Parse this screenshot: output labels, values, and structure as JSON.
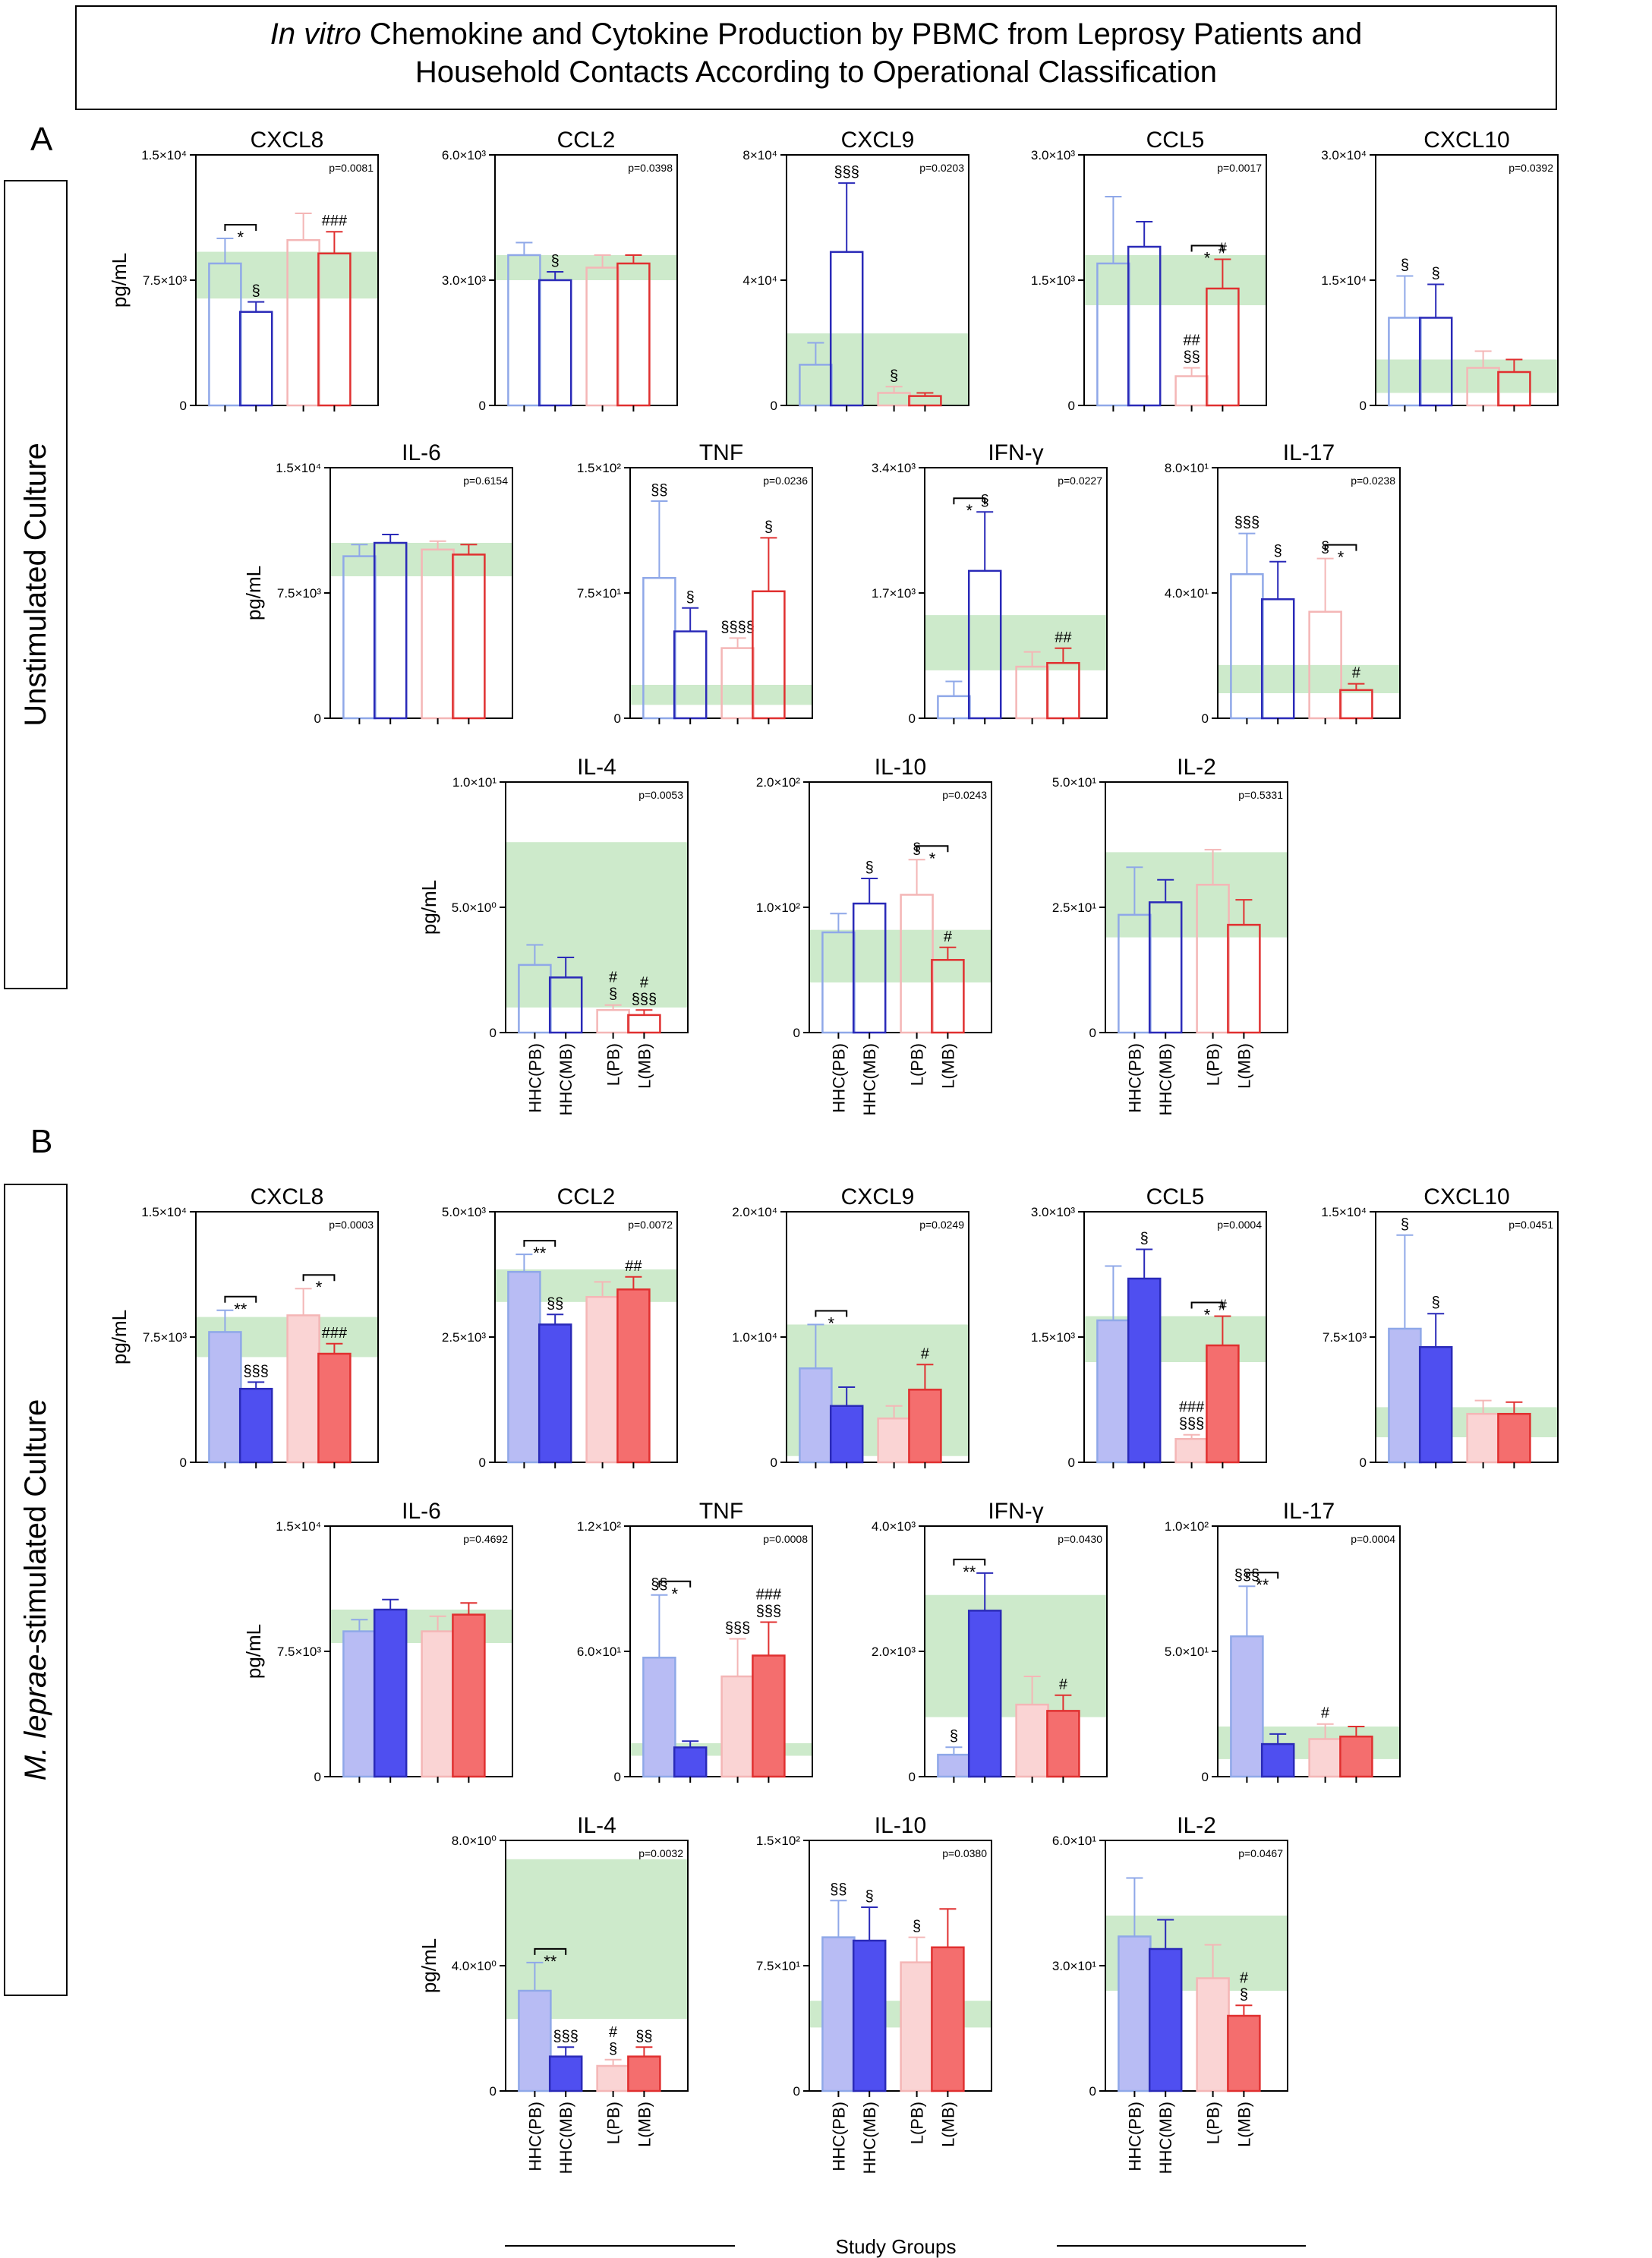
{
  "figure": {
    "title_line1_italic": "In vitro",
    "title_line1_rest": " Chemokine and Cytokine Production by PBMC from Leprosy Patients and",
    "title_line2": "Household Contacts According to Operational Classification",
    "panel_labels": [
      "A",
      "B"
    ],
    "side_labels": {
      "A": {
        "plain_before": "",
        "italic": "",
        "plain_after": "Unstimulated Culture"
      },
      "B": {
        "plain_before": "",
        "italic": "M. leprae",
        "plain_after": "-stimulated Culture"
      }
    },
    "ylabel": "pg/mL",
    "x_axis_title": "Study Groups",
    "groups": [
      "HHC(PB)",
      "HHC(MB)",
      "L(PB)",
      "L(MB)"
    ],
    "colors": {
      "hhc_pb": "#8fa8e8",
      "hhc_mb": "#2a2ab8",
      "l_pb": "#f4b6b6",
      "l_mb": "#e03030",
      "hhc_pb_fill": "#b8bcf4",
      "hhc_mb_fill": "#4f4ff0",
      "l_pb_fill": "#fad4d4",
      "l_mb_fill": "#f46e6e",
      "reference_band": "#cdeacb"
    }
  },
  "chart_data": [
    {
      "type": "bar",
      "section": "A",
      "title": "CXCL8",
      "ylim": [
        0,
        15000
      ],
      "ticks": [
        "0",
        "7.5×10³",
        "1.5×10⁴"
      ],
      "pvalue": "p=0.0081",
      "ylabel": "pg/mL",
      "band": [
        6400,
        9200
      ],
      "categories": [
        "HHC(PB)",
        "HHC(MB)",
        "L(PB)",
        "L(MB)"
      ],
      "values": [
        8500,
        5600,
        9900,
        9100
      ],
      "errors": [
        1500,
        600,
        1600,
        1300
      ],
      "marks": [
        "",
        "§",
        "",
        "###"
      ],
      "brackets": [
        {
          "from": 0,
          "to": 1,
          "label": "*"
        }
      ]
    },
    {
      "type": "bar",
      "section": "A",
      "title": "CCL2",
      "ylim": [
        0,
        6000
      ],
      "ticks": [
        "0",
        "3.0×10³",
        "6.0×10³"
      ],
      "pvalue": "p=0.0398",
      "ylabel": "",
      "band": [
        3000,
        3600
      ],
      "categories": [
        "HHC(PB)",
        "HHC(MB)",
        "L(PB)",
        "L(MB)"
      ],
      "values": [
        3600,
        3000,
        3300,
        3400
      ],
      "errors": [
        300,
        200,
        300,
        200
      ],
      "marks": [
        "",
        "§",
        "",
        ""
      ],
      "brackets": []
    },
    {
      "type": "bar",
      "section": "A",
      "title": "CXCL9",
      "ylim": [
        0,
        80000
      ],
      "ticks": [
        "0",
        "4×10⁴",
        "8×10⁴"
      ],
      "pvalue": "p=0.0203",
      "ylabel": "",
      "band": [
        0,
        23000
      ],
      "categories": [
        "HHC(PB)",
        "HHC(MB)",
        "L(PB)",
        "L(MB)"
      ],
      "values": [
        13000,
        49000,
        4000,
        3000
      ],
      "errors": [
        7000,
        22000,
        2000,
        1000
      ],
      "marks": [
        "",
        "§§§",
        "§",
        ""
      ],
      "brackets": []
    },
    {
      "type": "bar",
      "section": "A",
      "title": "CCL5",
      "ylim": [
        0,
        3000
      ],
      "ticks": [
        "0",
        "1.5×10³",
        "3.0×10³"
      ],
      "pvalue": "p=0.0017",
      "ylabel": "",
      "band": [
        1200,
        1800
      ],
      "categories": [
        "HHC(PB)",
        "HHC(MB)",
        "L(PB)",
        "L(MB)"
      ],
      "values": [
        1700,
        1900,
        350,
        1400
      ],
      "errors": [
        800,
        300,
        100,
        350
      ],
      "marks": [
        "",
        "",
        "##\n§§",
        "#"
      ],
      "brackets": [
        {
          "from": 2,
          "to": 3,
          "label": "*"
        }
      ]
    },
    {
      "type": "bar",
      "section": "A",
      "title": "CXCL10",
      "ylim": [
        0,
        30000
      ],
      "ticks": [
        "0",
        "1.5×10⁴",
        "3.0×10⁴"
      ],
      "pvalue": "p=0.0392",
      "ylabel": "",
      "band": [
        1500,
        5500
      ],
      "categories": [
        "HHC(PB)",
        "HHC(MB)",
        "L(PB)",
        "L(MB)"
      ],
      "values": [
        10500,
        10500,
        4500,
        4000
      ],
      "errors": [
        5000,
        4000,
        2000,
        1500
      ],
      "marks": [
        "§",
        "§",
        "",
        ""
      ],
      "brackets": []
    },
    {
      "type": "bar",
      "section": "A",
      "title": "IL-6",
      "ylim": [
        0,
        15000
      ],
      "ticks": [
        "0",
        "7.5×10³",
        "1.5×10⁴"
      ],
      "pvalue": "p=0.6154",
      "ylabel": "pg/mL",
      "band": [
        8500,
        10500
      ],
      "categories": [
        "HHC(PB)",
        "HHC(MB)",
        "L(PB)",
        "L(MB)"
      ],
      "values": [
        9700,
        10500,
        10100,
        9800
      ],
      "errors": [
        700,
        500,
        500,
        600
      ],
      "marks": [
        "",
        "",
        "",
        ""
      ],
      "brackets": []
    },
    {
      "type": "bar",
      "section": "A",
      "title": "TNF",
      "ylim": [
        0,
        150
      ],
      "ticks": [
        "0",
        "7.5×10¹",
        "1.5×10²"
      ],
      "pvalue": "p=0.0236",
      "ylabel": "",
      "band": [
        8,
        20
      ],
      "categories": [
        "HHC(PB)",
        "HHC(MB)",
        "L(PB)",
        "L(MB)"
      ],
      "values": [
        84,
        52,
        42,
        76
      ],
      "errors": [
        46,
        14,
        6,
        32
      ],
      "marks": [
        "§§",
        "§",
        "§§§§",
        "§"
      ],
      "brackets": []
    },
    {
      "type": "bar",
      "section": "A",
      "title": "IFN-γ",
      "ylim": [
        0,
        3400
      ],
      "ticks": [
        "0",
        "1.7×10³",
        "3.4×10³"
      ],
      "pvalue": "p=0.0227",
      "ylabel": "",
      "band": [
        650,
        1400
      ],
      "categories": [
        "HHC(PB)",
        "HHC(MB)",
        "L(PB)",
        "L(MB)"
      ],
      "values": [
        300,
        2000,
        700,
        750
      ],
      "errors": [
        200,
        800,
        200,
        200
      ],
      "marks": [
        "",
        "§",
        "",
        "##"
      ],
      "brackets": [
        {
          "from": 0,
          "to": 1,
          "label": "*"
        }
      ]
    },
    {
      "type": "bar",
      "section": "A",
      "title": "IL-17",
      "ylim": [
        0,
        80
      ],
      "ticks": [
        "0",
        "4.0×10¹",
        "8.0×10¹"
      ],
      "pvalue": "p=0.0238",
      "ylabel": "",
      "band": [
        8,
        17
      ],
      "categories": [
        "HHC(PB)",
        "HHC(MB)",
        "L(PB)",
        "L(MB)"
      ],
      "values": [
        46,
        38,
        34,
        9
      ],
      "errors": [
        13,
        12,
        17,
        2
      ],
      "marks": [
        "§§§",
        "§",
        "§",
        "#"
      ],
      "brackets": [
        {
          "from": 2,
          "to": 3,
          "label": "*"
        }
      ]
    },
    {
      "type": "bar",
      "section": "A",
      "title": "IL-4",
      "ylim": [
        0,
        10
      ],
      "ticks": [
        "0",
        "5.0×10⁰",
        "1.0×10¹"
      ],
      "pvalue": "p=0.0053",
      "ylabel": "pg/mL",
      "band": [
        1,
        7.6
      ],
      "categories": [
        "HHC(PB)",
        "HHC(MB)",
        "L(PB)",
        "L(MB)"
      ],
      "values": [
        2.7,
        2.2,
        0.9,
        0.7
      ],
      "errors": [
        0.8,
        0.8,
        0.2,
        0.2
      ],
      "marks": [
        "",
        "",
        "#\n§",
        "#\n§§§"
      ],
      "brackets": []
    },
    {
      "type": "bar",
      "section": "A",
      "title": "IL-10",
      "ylim": [
        0,
        200
      ],
      "ticks": [
        "0",
        "1.0×10²",
        "2.0×10²"
      ],
      "pvalue": "p=0.0243",
      "ylabel": "",
      "band": [
        40,
        82
      ],
      "categories": [
        "HHC(PB)",
        "HHC(MB)",
        "L(PB)",
        "L(MB)"
      ],
      "values": [
        80,
        103,
        110,
        58
      ],
      "errors": [
        15,
        20,
        28,
        10
      ],
      "marks": [
        "",
        "§",
        "§",
        "#"
      ],
      "brackets": [
        {
          "from": 2,
          "to": 3,
          "label": "*"
        }
      ]
    },
    {
      "type": "bar",
      "section": "A",
      "title": "IL-2",
      "ylim": [
        0,
        50
      ],
      "ticks": [
        "0",
        "2.5×10¹",
        "5.0×10¹"
      ],
      "pvalue": "p=0.5331",
      "ylabel": "",
      "band": [
        19,
        36
      ],
      "categories": [
        "HHC(PB)",
        "HHC(MB)",
        "L(PB)",
        "L(MB)"
      ],
      "values": [
        23.5,
        26,
        29.5,
        21.5
      ],
      "errors": [
        9.5,
        4.5,
        7,
        5
      ],
      "marks": [
        "",
        "",
        "",
        ""
      ],
      "brackets": []
    },
    {
      "type": "bar",
      "section": "B",
      "title": "CXCL8",
      "ylim": [
        0,
        15000
      ],
      "ticks": [
        "0",
        "7.5×10³",
        "1.5×10⁴"
      ],
      "pvalue": "p=0.0003",
      "ylabel": "pg/mL",
      "band": [
        6300,
        8700
      ],
      "categories": [
        "HHC(PB)",
        "HHC(MB)",
        "L(PB)",
        "L(MB)"
      ],
      "values": [
        7800,
        4400,
        8800,
        6500
      ],
      "errors": [
        1300,
        400,
        1600,
        600
      ],
      "marks": [
        "",
        "§§§",
        "",
        "###"
      ],
      "brackets": [
        {
          "from": 0,
          "to": 1,
          "label": "**"
        },
        {
          "from": 2,
          "to": 3,
          "label": "*"
        }
      ]
    },
    {
      "type": "bar",
      "section": "B",
      "title": "CCL2",
      "ylim": [
        0,
        5000
      ],
      "ticks": [
        "0",
        "2.5×10³",
        "5.0×10³"
      ],
      "pvalue": "p=0.0072",
      "ylabel": "",
      "band": [
        3200,
        3850
      ],
      "categories": [
        "HHC(PB)",
        "HHC(MB)",
        "L(PB)",
        "L(MB)"
      ],
      "values": [
        3800,
        2750,
        3300,
        3450
      ],
      "errors": [
        350,
        200,
        300,
        250
      ],
      "marks": [
        "",
        "§§",
        "",
        "##"
      ],
      "brackets": [
        {
          "from": 0,
          "to": 1,
          "label": "**"
        }
      ]
    },
    {
      "type": "bar",
      "section": "B",
      "title": "CXCL9",
      "ylim": [
        0,
        20000
      ],
      "ticks": [
        "0",
        "1.0×10⁴",
        "2.0×10⁴"
      ],
      "pvalue": "p=0.0249",
      "ylabel": "",
      "band": [
        500,
        11000
      ],
      "categories": [
        "HHC(PB)",
        "HHC(MB)",
        "L(PB)",
        "L(MB)"
      ],
      "values": [
        7500,
        4500,
        3500,
        5800
      ],
      "errors": [
        3500,
        1500,
        1000,
        2000
      ],
      "marks": [
        "",
        "",
        "",
        "#"
      ],
      "brackets": [
        {
          "from": 0,
          "to": 1,
          "label": "*"
        }
      ]
    },
    {
      "type": "bar",
      "section": "B",
      "title": "CCL5",
      "ylim": [
        0,
        3000
      ],
      "ticks": [
        "0",
        "1.5×10³",
        "3.0×10³"
      ],
      "pvalue": "p=0.0004",
      "ylabel": "",
      "band": [
        1200,
        1750
      ],
      "categories": [
        "HHC(PB)",
        "HHC(MB)",
        "L(PB)",
        "L(MB)"
      ],
      "values": [
        1700,
        2200,
        280,
        1400
      ],
      "errors": [
        650,
        350,
        50,
        350
      ],
      "marks": [
        "",
        "§",
        "###\n§§§",
        "#"
      ],
      "brackets": [
        {
          "from": 2,
          "to": 3,
          "label": "*"
        }
      ]
    },
    {
      "type": "bar",
      "section": "B",
      "title": "CXCL10",
      "ylim": [
        0,
        15000
      ],
      "ticks": [
        "0",
        "7.5×10³",
        "1.5×10⁴"
      ],
      "pvalue": "p=0.0451",
      "ylabel": "",
      "band": [
        1500,
        3300
      ],
      "categories": [
        "HHC(PB)",
        "HHC(MB)",
        "L(PB)",
        "L(MB)"
      ],
      "values": [
        8000,
        6900,
        2900,
        2900
      ],
      "errors": [
        5600,
        2000,
        800,
        700
      ],
      "marks": [
        "§",
        "§",
        "",
        ""
      ],
      "brackets": []
    },
    {
      "type": "bar",
      "section": "B",
      "title": "IL-6",
      "ylim": [
        0,
        15000
      ],
      "ticks": [
        "0",
        "7.5×10³",
        "1.5×10⁴"
      ],
      "pvalue": "p=0.4692",
      "ylabel": "pg/mL",
      "band": [
        8000,
        10000
      ],
      "categories": [
        "HHC(PB)",
        "HHC(MB)",
        "L(PB)",
        "L(MB)"
      ],
      "values": [
        8700,
        10000,
        8700,
        9700
      ],
      "errors": [
        700,
        600,
        900,
        700
      ],
      "marks": [
        "",
        "",
        "",
        ""
      ],
      "brackets": []
    },
    {
      "type": "bar",
      "section": "B",
      "title": "TNF",
      "ylim": [
        0,
        120
      ],
      "ticks": [
        "0",
        "6.0×10¹",
        "1.2×10²"
      ],
      "pvalue": "p=0.0008",
      "ylabel": "",
      "band": [
        10,
        16
      ],
      "categories": [
        "HHC(PB)",
        "HHC(MB)",
        "L(PB)",
        "L(MB)"
      ],
      "values": [
        57,
        14,
        48,
        58
      ],
      "errors": [
        30,
        3,
        18,
        16
      ],
      "marks": [
        "§§",
        "",
        "§§§",
        "###\n§§§"
      ],
      "brackets": [
        {
          "from": 0,
          "to": 1,
          "label": "*"
        }
      ]
    },
    {
      "type": "bar",
      "section": "B",
      "title": "IFN-γ",
      "ylim": [
        0,
        4000
      ],
      "ticks": [
        "0",
        "2.0×10³",
        "4.0×10³"
      ],
      "pvalue": "p=0.0430",
      "ylabel": "",
      "band": [
        950,
        2900
      ],
      "categories": [
        "HHC(PB)",
        "HHC(MB)",
        "L(PB)",
        "L(MB)"
      ],
      "values": [
        350,
        2650,
        1150,
        1050
      ],
      "errors": [
        120,
        600,
        450,
        250
      ],
      "marks": [
        "§",
        "",
        "",
        "#"
      ],
      "brackets": [
        {
          "from": 0,
          "to": 1,
          "label": "**"
        }
      ]
    },
    {
      "type": "bar",
      "section": "B",
      "title": "IL-17",
      "ylim": [
        0,
        100
      ],
      "ticks": [
        "0",
        "5.0×10¹",
        "1.0×10²"
      ],
      "pvalue": "p=0.0004",
      "ylabel": "",
      "band": [
        7,
        20
      ],
      "categories": [
        "HHC(PB)",
        "HHC(MB)",
        "L(PB)",
        "L(MB)"
      ],
      "values": [
        56,
        13,
        15,
        16
      ],
      "errors": [
        20,
        4,
        6,
        4
      ],
      "marks": [
        "§§§",
        "",
        "#",
        ""
      ],
      "brackets": [
        {
          "from": 0,
          "to": 1,
          "label": "**"
        }
      ]
    },
    {
      "type": "bar",
      "section": "B",
      "title": "IL-4",
      "ylim": [
        0,
        8
      ],
      "ticks": [
        "0",
        "4.0×10⁰",
        "8.0×10⁰"
      ],
      "pvalue": "p=0.0032",
      "ylabel": "pg/mL",
      "band": [
        2.3,
        7.4
      ],
      "categories": [
        "HHC(PB)",
        "HHC(MB)",
        "L(PB)",
        "L(MB)"
      ],
      "values": [
        3.2,
        1.1,
        0.8,
        1.1
      ],
      "errors": [
        0.9,
        0.3,
        0.2,
        0.3
      ],
      "marks": [
        "",
        "§§§",
        "#\n§",
        "§§"
      ],
      "brackets": [
        {
          "from": 0,
          "to": 1,
          "label": "**"
        }
      ]
    },
    {
      "type": "bar",
      "section": "B",
      "title": "IL-10",
      "ylim": [
        0,
        150
      ],
      "ticks": [
        "0",
        "7.5×10¹",
        "1.5×10²"
      ],
      "pvalue": "p=0.0380",
      "ylabel": "",
      "band": [
        38,
        54
      ],
      "categories": [
        "HHC(PB)",
        "HHC(MB)",
        "L(PB)",
        "L(MB)"
      ],
      "values": [
        92,
        90,
        77,
        86
      ],
      "errors": [
        22,
        20,
        15,
        23
      ],
      "marks": [
        "§§",
        "§",
        "§",
        ""
      ],
      "brackets": []
    },
    {
      "type": "bar",
      "section": "B",
      "title": "IL-2",
      "ylim": [
        0,
        60
      ],
      "ticks": [
        "0",
        "3.0×10¹",
        "6.0×10¹"
      ],
      "pvalue": "p=0.0467",
      "ylabel": "",
      "band": [
        24,
        42
      ],
      "categories": [
        "HHC(PB)",
        "HHC(MB)",
        "L(PB)",
        "L(MB)"
      ],
      "values": [
        37,
        34,
        27,
        18
      ],
      "errors": [
        14,
        7,
        8,
        2.5
      ],
      "marks": [
        "",
        "",
        "",
        "#\n§"
      ],
      "brackets": []
    }
  ]
}
